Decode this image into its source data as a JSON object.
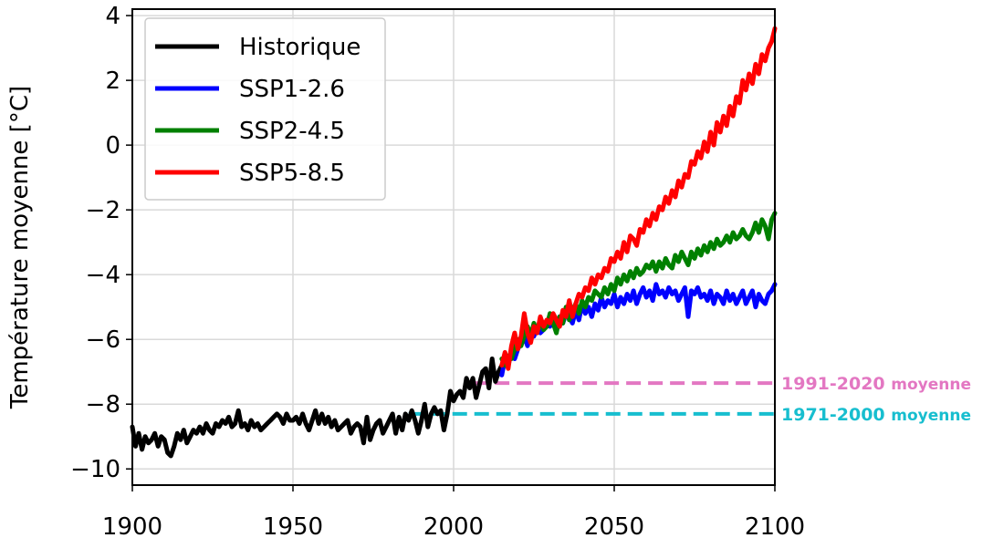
{
  "chart_data": {
    "type": "line",
    "title": "",
    "xlabel": "",
    "ylabel": "Température moyenne [°C]",
    "xlim": [
      1900,
      2100
    ],
    "ylim": [
      -10.5,
      4.2
    ],
    "xticks": [
      1900,
      1950,
      2000,
      2050,
      2100
    ],
    "yticks": [
      -10,
      -8,
      -6,
      -4,
      -2,
      0,
      2,
      4
    ],
    "ytick_labels": [
      "−10",
      "−8",
      "−6",
      "−4",
      "−2",
      "0",
      "2",
      "4"
    ],
    "grid": true,
    "legend_position": "top-left",
    "series": [
      {
        "name": "Historique",
        "color": "#000000",
        "x": [
          1900,
          1901,
          1902,
          1903,
          1904,
          1905,
          1906,
          1907,
          1908,
          1909,
          1910,
          1911,
          1912,
          1913,
          1914,
          1915,
          1916,
          1917,
          1918,
          1919,
          1920,
          1921,
          1922,
          1923,
          1924,
          1925,
          1926,
          1927,
          1928,
          1929,
          1930,
          1931,
          1932,
          1933,
          1934,
          1935,
          1936,
          1937,
          1938,
          1939,
          1940,
          1941,
          1942,
          1943,
          1944,
          1945,
          1946,
          1947,
          1948,
          1949,
          1950,
          1951,
          1952,
          1953,
          1954,
          1955,
          1956,
          1957,
          1958,
          1959,
          1960,
          1961,
          1962,
          1963,
          1964,
          1965,
          1966,
          1967,
          1968,
          1969,
          1970,
          1971,
          1972,
          1973,
          1974,
          1975,
          1976,
          1977,
          1978,
          1979,
          1980,
          1981,
          1982,
          1983,
          1984,
          1985,
          1986,
          1987,
          1988,
          1989,
          1990,
          1991,
          1992,
          1993,
          1994,
          1995,
          1996,
          1997,
          1998,
          1999,
          2000,
          2001,
          2002,
          2003,
          2004,
          2005,
          2006,
          2007,
          2008,
          2009,
          2010,
          2011,
          2012,
          2013,
          2014,
          2015
        ],
        "y": [
          -8.7,
          -9.3,
          -8.9,
          -9.4,
          -9.0,
          -9.2,
          -9.1,
          -8.9,
          -9.3,
          -9.0,
          -9.1,
          -9.5,
          -9.6,
          -9.3,
          -8.9,
          -9.1,
          -8.8,
          -9.2,
          -9.0,
          -8.8,
          -8.9,
          -8.7,
          -8.9,
          -8.6,
          -8.8,
          -8.9,
          -8.6,
          -8.7,
          -8.5,
          -8.6,
          -8.4,
          -8.7,
          -8.6,
          -8.2,
          -8.7,
          -8.6,
          -8.8,
          -8.5,
          -8.7,
          -8.6,
          -8.8,
          -8.7,
          -8.6,
          -8.5,
          -8.4,
          -8.3,
          -8.4,
          -8.6,
          -8.3,
          -8.5,
          -8.5,
          -8.4,
          -8.6,
          -8.3,
          -8.6,
          -8.8,
          -8.5,
          -8.2,
          -8.6,
          -8.3,
          -8.6,
          -8.4,
          -8.7,
          -8.5,
          -8.8,
          -8.7,
          -8.6,
          -8.5,
          -8.9,
          -8.7,
          -8.6,
          -8.7,
          -9.2,
          -8.4,
          -9.1,
          -8.8,
          -8.6,
          -8.5,
          -8.9,
          -8.7,
          -8.5,
          -8.3,
          -8.9,
          -8.4,
          -8.8,
          -8.3,
          -8.5,
          -8.2,
          -8.5,
          -8.9,
          -8.5,
          -8.0,
          -8.7,
          -8.3,
          -8.1,
          -8.3,
          -8.2,
          -8.8,
          -8.3,
          -7.6,
          -7.9,
          -7.7,
          -7.6,
          -7.8,
          -7.2,
          -7.5,
          -7.2,
          -7.8,
          -7.4,
          -7.0,
          -6.9,
          -7.5,
          -6.6,
          -7.3,
          -7.0,
          -6.8
        ]
      },
      {
        "name": "SSP1-2.6",
        "color": "#0000ff",
        "x": [
          2015,
          2016,
          2017,
          2018,
          2019,
          2020,
          2021,
          2022,
          2023,
          2024,
          2025,
          2026,
          2027,
          2028,
          2029,
          2030,
          2031,
          2032,
          2033,
          2034,
          2035,
          2036,
          2037,
          2038,
          2039,
          2040,
          2041,
          2042,
          2043,
          2044,
          2045,
          2046,
          2047,
          2048,
          2049,
          2050,
          2051,
          2052,
          2053,
          2054,
          2055,
          2056,
          2057,
          2058,
          2059,
          2060,
          2061,
          2062,
          2063,
          2064,
          2065,
          2066,
          2067,
          2068,
          2069,
          2070,
          2071,
          2072,
          2073,
          2074,
          2075,
          2076,
          2077,
          2078,
          2079,
          2080,
          2081,
          2082,
          2083,
          2084,
          2085,
          2086,
          2087,
          2088,
          2089,
          2090,
          2091,
          2092,
          2093,
          2094,
          2095,
          2096,
          2097,
          2098,
          2099,
          2100
        ],
        "y": [
          -7.1,
          -6.6,
          -6.8,
          -6.4,
          -6.6,
          -6.3,
          -6.1,
          -5.9,
          -6.2,
          -5.7,
          -5.9,
          -5.6,
          -5.8,
          -5.7,
          -5.5,
          -5.6,
          -5.4,
          -5.6,
          -5.3,
          -5.5,
          -5.2,
          -5.3,
          -5.5,
          -5.1,
          -5.4,
          -4.9,
          -5.2,
          -5.0,
          -5.3,
          -4.9,
          -5.1,
          -4.7,
          -5.0,
          -4.8,
          -4.9,
          -4.6,
          -5.0,
          -4.7,
          -4.9,
          -4.6,
          -4.8,
          -4.5,
          -4.9,
          -4.6,
          -4.4,
          -4.7,
          -4.5,
          -4.8,
          -4.3,
          -4.6,
          -4.5,
          -4.7,
          -4.4,
          -4.6,
          -4.5,
          -4.8,
          -4.6,
          -4.4,
          -5.3,
          -4.5,
          -4.6,
          -4.4,
          -4.7,
          -4.6,
          -4.8,
          -4.5,
          -4.9,
          -4.6,
          -4.7,
          -4.9,
          -4.5,
          -4.8,
          -4.6,
          -4.9,
          -4.7,
          -4.5,
          -4.9,
          -4.7,
          -4.5,
          -5.0,
          -4.6,
          -4.8,
          -4.9,
          -4.6,
          -4.5,
          -4.3
        ]
      },
      {
        "name": "SSP2-4.5",
        "color": "#008000",
        "x": [
          2015,
          2016,
          2017,
          2018,
          2019,
          2020,
          2021,
          2022,
          2023,
          2024,
          2025,
          2026,
          2027,
          2028,
          2029,
          2030,
          2031,
          2032,
          2033,
          2034,
          2035,
          2036,
          2037,
          2038,
          2039,
          2040,
          2041,
          2042,
          2043,
          2044,
          2045,
          2046,
          2047,
          2048,
          2049,
          2050,
          2051,
          2052,
          2053,
          2054,
          2055,
          2056,
          2057,
          2058,
          2059,
          2060,
          2061,
          2062,
          2063,
          2064,
          2065,
          2066,
          2067,
          2068,
          2069,
          2070,
          2071,
          2072,
          2073,
          2074,
          2075,
          2076,
          2077,
          2078,
          2079,
          2080,
          2081,
          2082,
          2083,
          2084,
          2085,
          2086,
          2087,
          2088,
          2089,
          2090,
          2091,
          2092,
          2093,
          2094,
          2095,
          2096,
          2097,
          2098,
          2099,
          2100
        ],
        "y": [
          -6.6,
          -6.8,
          -6.5,
          -6.6,
          -6.3,
          -6.0,
          -6.2,
          -5.9,
          -5.6,
          -5.9,
          -5.5,
          -5.8,
          -5.4,
          -5.7,
          -5.6,
          -5.2,
          -5.5,
          -5.8,
          -5.3,
          -5.5,
          -5.0,
          -5.4,
          -5.1,
          -4.9,
          -5.2,
          -4.8,
          -5.0,
          -4.7,
          -4.8,
          -4.5,
          -4.6,
          -4.7,
          -4.4,
          -4.6,
          -4.3,
          -4.5,
          -4.1,
          -4.3,
          -4.0,
          -4.2,
          -3.9,
          -4.1,
          -3.8,
          -4.0,
          -3.9,
          -3.7,
          -3.8,
          -3.6,
          -3.9,
          -3.6,
          -3.8,
          -3.5,
          -3.7,
          -3.8,
          -3.4,
          -3.6,
          -3.3,
          -3.5,
          -3.7,
          -3.3,
          -3.5,
          -3.2,
          -3.4,
          -3.1,
          -3.3,
          -3.0,
          -3.2,
          -2.9,
          -3.1,
          -3.0,
          -2.8,
          -3.0,
          -2.7,
          -2.9,
          -2.8,
          -2.6,
          -2.8,
          -2.9,
          -2.7,
          -2.4,
          -2.7,
          -2.3,
          -2.5,
          -2.9,
          -2.3,
          -2.1
        ]
      },
      {
        "name": "SSP5-8.5",
        "color": "#ff0000",
        "x": [
          2015,
          2016,
          2017,
          2018,
          2019,
          2020,
          2021,
          2022,
          2023,
          2024,
          2025,
          2026,
          2027,
          2028,
          2029,
          2030,
          2031,
          2032,
          2033,
          2034,
          2035,
          2036,
          2037,
          2038,
          2039,
          2040,
          2041,
          2042,
          2043,
          2044,
          2045,
          2046,
          2047,
          2048,
          2049,
          2050,
          2051,
          2052,
          2053,
          2054,
          2055,
          2056,
          2057,
          2058,
          2059,
          2060,
          2061,
          2062,
          2063,
          2064,
          2065,
          2066,
          2067,
          2068,
          2069,
          2070,
          2071,
          2072,
          2073,
          2074,
          2075,
          2076,
          2077,
          2078,
          2079,
          2080,
          2081,
          2082,
          2083,
          2084,
          2085,
          2086,
          2087,
          2088,
          2089,
          2090,
          2091,
          2092,
          2093,
          2094,
          2095,
          2096,
          2097,
          2098,
          2099,
          2100
        ],
        "y": [
          -6.8,
          -6.4,
          -6.9,
          -6.2,
          -5.8,
          -6.3,
          -5.9,
          -5.2,
          -5.8,
          -6.1,
          -5.6,
          -5.8,
          -5.3,
          -5.6,
          -5.4,
          -5.5,
          -5.2,
          -5.4,
          -5.6,
          -5.1,
          -5.3,
          -4.8,
          -5.3,
          -4.9,
          -4.6,
          -4.7,
          -4.4,
          -4.5,
          -4.1,
          -4.3,
          -4.0,
          -4.1,
          -3.8,
          -3.9,
          -3.5,
          -3.6,
          -3.3,
          -3.5,
          -3.0,
          -3.3,
          -2.8,
          -2.9,
          -3.1,
          -2.6,
          -2.7,
          -2.3,
          -2.5,
          -2.1,
          -2.3,
          -1.9,
          -2.0,
          -1.6,
          -1.8,
          -1.4,
          -1.6,
          -1.1,
          -1.3,
          -0.9,
          -1.0,
          -0.5,
          -0.6,
          -0.2,
          -0.4,
          0.1,
          -0.2,
          0.4,
          0.0,
          0.7,
          0.4,
          0.9,
          0.6,
          1.2,
          0.9,
          1.5,
          1.3,
          2.0,
          1.7,
          2.2,
          1.9,
          2.5,
          2.2,
          2.8,
          2.6,
          3.0,
          3.2,
          3.6
        ]
      }
    ],
    "reference_lines": [
      {
        "label": "1991-2020",
        "suffix": "moyenne",
        "y": -7.35,
        "x_start": 2006,
        "x_end": 2100,
        "color": "#e377c2"
      },
      {
        "label": "1971-2000",
        "suffix": "moyenne",
        "y": -8.3,
        "x_start": 1986,
        "x_end": 2100,
        "color": "#17becf"
      }
    ]
  }
}
